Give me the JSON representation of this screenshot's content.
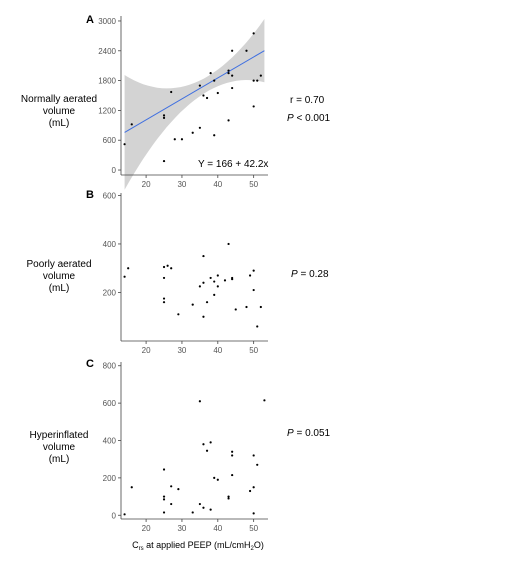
{
  "chart_data": [
    {
      "type": "scatter",
      "panel_label": "A",
      "ylabel_lines": [
        "Normally aerated",
        "volume",
        "(mL)"
      ],
      "ylim": [
        -100,
        3100
      ],
      "y_ticks": [
        "0",
        "600",
        "1200",
        "1800",
        "2400",
        "3000"
      ],
      "xlim": [
        13,
        54
      ],
      "x_ticks": [
        "20",
        "30",
        "40",
        "50"
      ],
      "stats": {
        "r": "r = 0.70",
        "p_italic": "P",
        "p_rest": " < 0.001"
      },
      "equation": "Y = 166 + 42.2x",
      "regression": {
        "intercept": 166,
        "slope": 42.2,
        "x_range": [
          14,
          53
        ],
        "band_color": "#d3d3d3",
        "line_color": "#3f6fe0"
      },
      "points": [
        {
          "x": 14,
          "y": 520
        },
        {
          "x": 16,
          "y": 920
        },
        {
          "x": 25,
          "y": 1050
        },
        {
          "x": 25,
          "y": 1100
        },
        {
          "x": 25,
          "y": 180
        },
        {
          "x": 27,
          "y": 1570
        },
        {
          "x": 28,
          "y": 620
        },
        {
          "x": 30,
          "y": 620
        },
        {
          "x": 33,
          "y": 750
        },
        {
          "x": 35,
          "y": 1700
        },
        {
          "x": 35,
          "y": 850
        },
        {
          "x": 36,
          "y": 1500
        },
        {
          "x": 37,
          "y": 1450
        },
        {
          "x": 38,
          "y": 1950
        },
        {
          "x": 39,
          "y": 1800
        },
        {
          "x": 39,
          "y": 700
        },
        {
          "x": 40,
          "y": 1550
        },
        {
          "x": 43,
          "y": 1950
        },
        {
          "x": 43,
          "y": 2000
        },
        {
          "x": 43,
          "y": 1000
        },
        {
          "x": 44,
          "y": 1900
        },
        {
          "x": 44,
          "y": 2400
        },
        {
          "x": 44,
          "y": 1650
        },
        {
          "x": 48,
          "y": 2400
        },
        {
          "x": 50,
          "y": 2750
        },
        {
          "x": 50,
          "y": 1800
        },
        {
          "x": 51,
          "y": 1800
        },
        {
          "x": 52,
          "y": 1900
        },
        {
          "x": 50,
          "y": 1280
        }
      ]
    },
    {
      "type": "scatter",
      "panel_label": "B",
      "ylabel_lines": [
        "Poorly aerated",
        "volume",
        "(mL)"
      ],
      "ylim": [
        0,
        610
      ],
      "y_ticks": [
        "200",
        "400",
        "600"
      ],
      "xlim": [
        13,
        54
      ],
      "x_ticks": [
        "20",
        "30",
        "40",
        "50"
      ],
      "stats": {
        "r": "",
        "p_italic": "P",
        "p_rest": " = 0.28"
      },
      "equation": "",
      "points": [
        {
          "x": 14,
          "y": 265
        },
        {
          "x": 15,
          "y": 300
        },
        {
          "x": 25,
          "y": 305
        },
        {
          "x": 25,
          "y": 260
        },
        {
          "x": 25,
          "y": 175
        },
        {
          "x": 25,
          "y": 160
        },
        {
          "x": 26,
          "y": 310
        },
        {
          "x": 27,
          "y": 300
        },
        {
          "x": 29,
          "y": 110
        },
        {
          "x": 33,
          "y": 150
        },
        {
          "x": 35,
          "y": 225
        },
        {
          "x": 36,
          "y": 350
        },
        {
          "x": 36,
          "y": 240
        },
        {
          "x": 36,
          "y": 100
        },
        {
          "x": 37,
          "y": 160
        },
        {
          "x": 38,
          "y": 260
        },
        {
          "x": 39,
          "y": 245
        },
        {
          "x": 39,
          "y": 190
        },
        {
          "x": 40,
          "y": 270
        },
        {
          "x": 40,
          "y": 225
        },
        {
          "x": 42,
          "y": 250
        },
        {
          "x": 43,
          "y": 400
        },
        {
          "x": 44,
          "y": 260
        },
        {
          "x": 44,
          "y": 255
        },
        {
          "x": 45,
          "y": 130
        },
        {
          "x": 48,
          "y": 140
        },
        {
          "x": 49,
          "y": 270
        },
        {
          "x": 50,
          "y": 290
        },
        {
          "x": 50,
          "y": 210
        },
        {
          "x": 51,
          "y": 60
        },
        {
          "x": 52,
          "y": 140
        }
      ]
    },
    {
      "type": "scatter",
      "panel_label": "C",
      "ylabel_lines": [
        "Hyperinflated",
        "volume",
        "(mL)"
      ],
      "ylim": [
        -20,
        820
      ],
      "y_ticks": [
        "0",
        "200",
        "400",
        "600",
        "800"
      ],
      "xlim": [
        13,
        54
      ],
      "x_ticks": [
        "20",
        "30",
        "40",
        "50"
      ],
      "stats": {
        "r": "",
        "p_italic": "P",
        "p_rest": " = 0.051"
      },
      "equation": "",
      "xlabel_main": "C",
      "xlabel_sub": "rs",
      "xlabel_mid": " at applied PEEP (mL/cmH",
      "xlabel_sub2": "2",
      "xlabel_end": "O)",
      "points": [
        {
          "x": 14,
          "y": 5
        },
        {
          "x": 16,
          "y": 150
        },
        {
          "x": 25,
          "y": 245
        },
        {
          "x": 25,
          "y": 100
        },
        {
          "x": 25,
          "y": 85
        },
        {
          "x": 25,
          "y": 15
        },
        {
          "x": 27,
          "y": 155
        },
        {
          "x": 27,
          "y": 60
        },
        {
          "x": 29,
          "y": 140
        },
        {
          "x": 33,
          "y": 15
        },
        {
          "x": 35,
          "y": 610
        },
        {
          "x": 35,
          "y": 60
        },
        {
          "x": 36,
          "y": 380
        },
        {
          "x": 36,
          "y": 40
        },
        {
          "x": 37,
          "y": 345
        },
        {
          "x": 38,
          "y": 390
        },
        {
          "x": 38,
          "y": 30
        },
        {
          "x": 39,
          "y": 200
        },
        {
          "x": 40,
          "y": 190
        },
        {
          "x": 43,
          "y": 90
        },
        {
          "x": 43,
          "y": 100
        },
        {
          "x": 44,
          "y": 340
        },
        {
          "x": 44,
          "y": 320
        },
        {
          "x": 44,
          "y": 215
        },
        {
          "x": 49,
          "y": 130
        },
        {
          "x": 50,
          "y": 150
        },
        {
          "x": 50,
          "y": 320
        },
        {
          "x": 50,
          "y": 10
        },
        {
          "x": 51,
          "y": 270
        },
        {
          "x": 53,
          "y": 615
        }
      ]
    }
  ]
}
